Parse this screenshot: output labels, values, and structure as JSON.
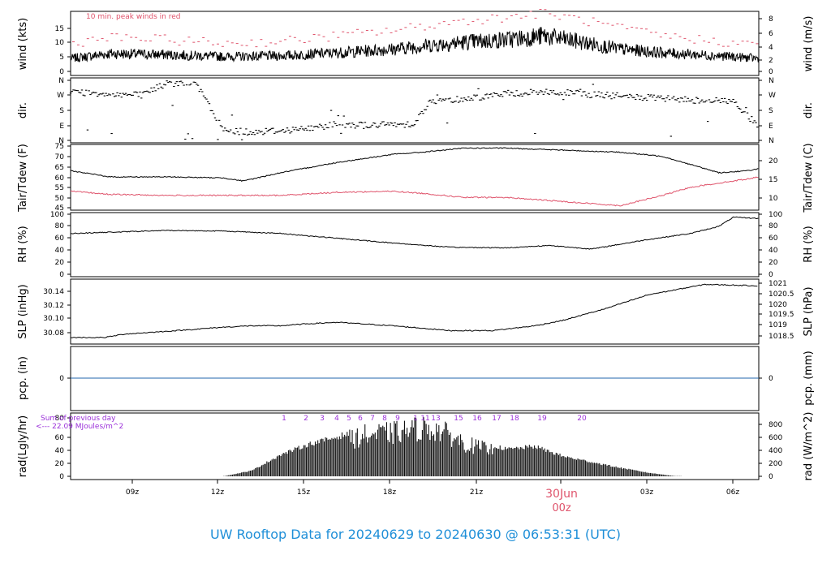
{
  "colors": {
    "frame": "#000000",
    "peak": "#DF536B",
    "tdew": "#DF536B",
    "annot": "#9B30D9",
    "pcp": "#2166AC",
    "footer": "#1F8FD8",
    "date": "#DF536B"
  },
  "footer": {
    "title": "UW Rooftop Data for 20240629  to  20240630 @ 06:53:31  (UTC)"
  },
  "chart_data": [
    {
      "type": "line",
      "name": "wind",
      "ylabel_left": "wind (kts)",
      "ylabel_right": "wind (m/s)",
      "ylim": [
        0,
        17
      ],
      "left_ticks": [
        "0",
        "5",
        "10",
        "15"
      ],
      "right_ticks": [
        "0",
        "2",
        "4",
        "6",
        "8"
      ],
      "annotation": "10 min. peak winds in red",
      "x_hours": [
        6.6,
        8,
        10,
        12,
        14,
        16,
        18,
        19.5,
        20.5,
        22,
        23.3,
        24.5,
        26,
        27.5,
        29.5,
        30.9
      ],
      "speed_kts": [
        4.5,
        5.8,
        5.5,
        5.0,
        5.2,
        6.0,
        7.0,
        8.2,
        8.8,
        9.5,
        10.5,
        9.0,
        7.0,
        6.0,
        5.2,
        4.5
      ],
      "peak_kts": [
        8.5,
        10.0,
        9.5,
        8.5,
        9.0,
        10.5,
        12.0,
        13.5,
        14.5,
        15.5,
        16.5,
        15.0,
        12.5,
        10.5,
        9.0,
        8.0
      ]
    },
    {
      "type": "scatter",
      "name": "dir",
      "ylabel_left": "dir.",
      "ylabel_right": "dir.",
      "ylim": [
        0,
        360
      ],
      "left_ticks": [
        "N",
        "E",
        "S",
        "W",
        "N"
      ],
      "right_ticks": [
        "N",
        "E",
        "S",
        "W",
        "N"
      ],
      "x_hours": [
        6.6,
        8,
        9,
        10,
        11,
        12,
        13,
        14,
        15,
        16,
        17,
        18,
        18.7,
        19.3,
        20.5,
        22,
        23.5,
        25,
        26.5,
        28,
        29,
        30,
        30.9
      ],
      "dir_deg": [
        290,
        280,
        270,
        340,
        350,
        60,
        50,
        60,
        70,
        100,
        90,
        95,
        100,
        230,
        250,
        280,
        290,
        275,
        260,
        245,
        240,
        235,
        80
      ]
    },
    {
      "type": "line",
      "name": "temp",
      "ylabel_left": "Tair/Tdew (F)",
      "ylabel_right": "Tair/Tdew (C)",
      "ylim": [
        45,
        75
      ],
      "left_ticks": [
        "45",
        "50",
        "55",
        "60",
        "65",
        "70",
        "75"
      ],
      "right_ticks": [
        "10",
        "15",
        "20"
      ],
      "x_hours": [
        6.6,
        8,
        10,
        12,
        12.7,
        14,
        16,
        18,
        19,
        20.5,
        22,
        24,
        26,
        27.5,
        28.5,
        29.5,
        30.5,
        30.9
      ],
      "tair_F": [
        63,
        60,
        60,
        59.5,
        58,
        62,
        67,
        71,
        72,
        74,
        74,
        73,
        72,
        70,
        66,
        62,
        63,
        64
      ],
      "tdew_F": [
        53,
        51.5,
        51,
        51,
        51,
        51,
        52.5,
        53,
        52,
        50,
        50,
        48,
        46,
        51,
        55,
        57,
        59,
        60
      ]
    },
    {
      "type": "line",
      "name": "rh",
      "ylabel_left": "RH (%)",
      "ylabel_right": "RH (%)",
      "ylim": [
        0,
        100
      ],
      "left_ticks": [
        "0",
        "20",
        "40",
        "60",
        "80",
        "100"
      ],
      "right_ticks": [
        "0",
        "20",
        "40",
        "60",
        "80",
        "100"
      ],
      "x_hours": [
        6.6,
        8,
        10,
        12,
        14,
        16,
        18,
        20,
        22,
        23.5,
        25,
        27,
        28.5,
        29.5,
        30,
        30.9
      ],
      "rh_pct": [
        68,
        70,
        73,
        72,
        68,
        60,
        52,
        45,
        44,
        48,
        42,
        58,
        68,
        80,
        95,
        93
      ]
    },
    {
      "type": "line",
      "name": "slp",
      "ylabel_left": "SLP (inHg)",
      "ylabel_right": "SLP (hPa)",
      "ylim": [
        30.065,
        30.155
      ],
      "left_ticks": [
        "30.08",
        "30.10",
        "30.12",
        "30.14"
      ],
      "right_ticks": [
        "1018.5",
        "1019",
        "1019.5",
        "1020",
        "1020.5",
        "1021"
      ],
      "x_hours": [
        6.6,
        7.8,
        8.5,
        10,
        12,
        13,
        14,
        15,
        16,
        18,
        20,
        21.5,
        23,
        24,
        25.5,
        27,
        29,
        30.9
      ],
      "slp_inHg": [
        30.073,
        30.073,
        30.078,
        30.082,
        30.088,
        30.09,
        30.09,
        30.093,
        30.095,
        30.09,
        30.083,
        30.083,
        30.09,
        30.098,
        30.115,
        30.135,
        30.15,
        30.148
      ]
    },
    {
      "type": "line",
      "name": "pcp",
      "ylabel_left": "pcp. (in)",
      "ylabel_right": "pcp. (mm)",
      "left_ticks": [
        "0"
      ],
      "right_ticks": [
        "0"
      ],
      "values": [
        0,
        0
      ]
    },
    {
      "type": "bar",
      "name": "rad",
      "ylabel_left": "rad(Lgly/hr)",
      "ylabel_right": "rad (W/m^2)",
      "ylim": [
        0,
        80
      ],
      "left_ticks": [
        "0",
        "20",
        "40",
        "60",
        "80"
      ],
      "right_ticks": [
        "0",
        "200",
        "400",
        "600",
        "800"
      ],
      "summary_line1": "Sum of previous day",
      "summary_line2": "<--- 22.09 MJoules/m^2",
      "hour_labels": [
        "1",
        "2",
        "3",
        "4",
        "5",
        "6",
        "7",
        "8",
        "9",
        "1",
        "11",
        "13",
        "15",
        "16",
        "17",
        "18",
        "19",
        "20"
      ],
      "x_hours": [
        12,
        13,
        14,
        15,
        16,
        17,
        18,
        19,
        19.5,
        20,
        20.5,
        21,
        22,
        23,
        24,
        25,
        26,
        27,
        28
      ],
      "rad_lgly": [
        0,
        8,
        30,
        45,
        55,
        68,
        72,
        80,
        78,
        68,
        55,
        48,
        38,
        42,
        28,
        20,
        12,
        5,
        0
      ]
    },
    {
      "type": "axis",
      "name": "time",
      "xlim": [
        6.6,
        30.9
      ],
      "ticks": [
        "09z",
        "12z",
        "15z",
        "18z",
        "21z",
        "03z",
        "06z"
      ],
      "date_label": "30Jun",
      "date_sub": "00z"
    }
  ]
}
